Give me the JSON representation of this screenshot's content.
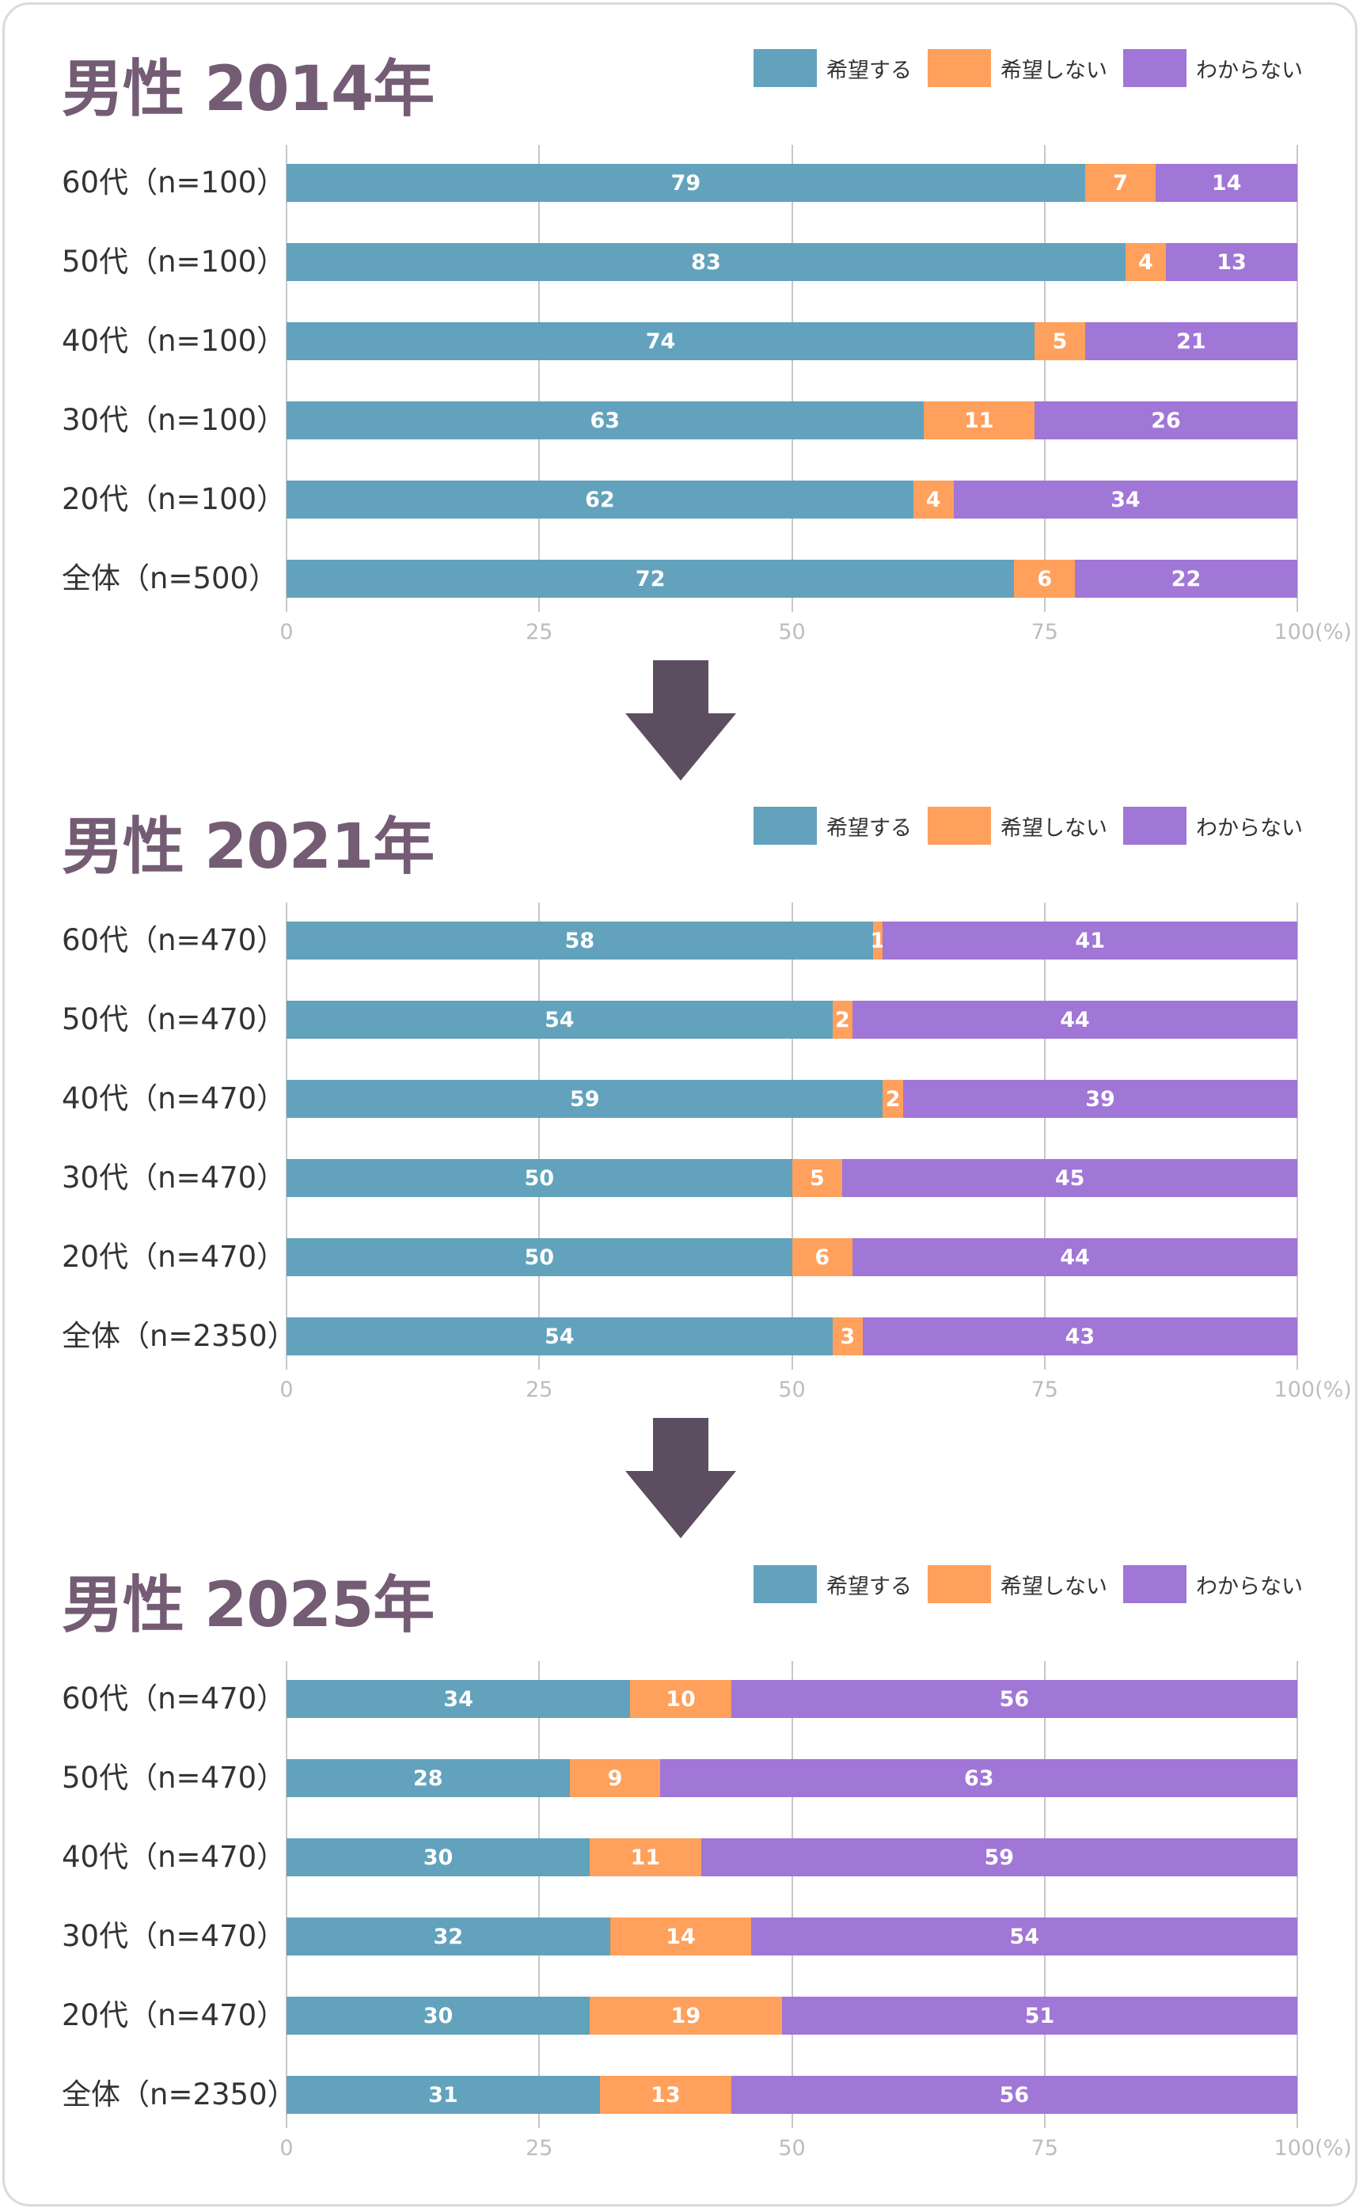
{
  "legend": [
    {
      "label": "希望する",
      "color": "#62a2bd"
    },
    {
      "label": "希望しない",
      "color": "#ffa05c"
    },
    {
      "label": "わからない",
      "color": "#a076d6"
    }
  ],
  "ticks": [
    "0",
    "25",
    "50",
    "75",
    "100(%)"
  ],
  "chart_data": [
    {
      "type": "bar",
      "stacked": true,
      "orientation": "horizontal",
      "title": "男性 2014年",
      "title_main": "男性 2014",
      "title_suffix": "年",
      "xlim": [
        0,
        100
      ],
      "categories": [
        "60代（n=100）",
        "50代（n=100）",
        "40代（n=100）",
        "30代（n=100）",
        "20代（n=100）",
        "全体（n=500）"
      ],
      "series": [
        {
          "name": "希望する",
          "values": [
            79,
            83,
            74,
            63,
            62,
            72
          ]
        },
        {
          "name": "希望しない",
          "values": [
            7,
            4,
            5,
            11,
            4,
            6
          ]
        },
        {
          "name": "わからない",
          "values": [
            14,
            13,
            21,
            26,
            34,
            22
          ]
        }
      ]
    },
    {
      "type": "bar",
      "stacked": true,
      "orientation": "horizontal",
      "title": "男性 2021年",
      "title_main": "男性 2021",
      "title_suffix": "年",
      "xlim": [
        0,
        100
      ],
      "categories": [
        "60代（n=470）",
        "50代（n=470）",
        "40代（n=470）",
        "30代（n=470）",
        "20代（n=470）",
        "全体（n=2350）"
      ],
      "series": [
        {
          "name": "希望する",
          "values": [
            58,
            54,
            59,
            50,
            50,
            54
          ]
        },
        {
          "name": "希望しない",
          "values": [
            1,
            2,
            2,
            5,
            6,
            3
          ]
        },
        {
          "name": "わからない",
          "values": [
            41,
            44,
            39,
            45,
            44,
            43
          ]
        }
      ]
    },
    {
      "type": "bar",
      "stacked": true,
      "orientation": "horizontal",
      "title": "男性 2025年",
      "title_main": "男性 2025",
      "title_suffix": "年",
      "xlim": [
        0,
        100
      ],
      "categories": [
        "60代（n=470）",
        "50代（n=470）",
        "40代（n=470）",
        "30代（n=470）",
        "20代（n=470）",
        "全体（n=2350）"
      ],
      "series": [
        {
          "name": "希望する",
          "values": [
            34,
            28,
            30,
            32,
            30,
            31
          ]
        },
        {
          "name": "希望しない",
          "values": [
            10,
            9,
            11,
            14,
            19,
            13
          ]
        },
        {
          "name": "わからない",
          "values": [
            56,
            63,
            59,
            54,
            51,
            56
          ]
        }
      ]
    }
  ]
}
